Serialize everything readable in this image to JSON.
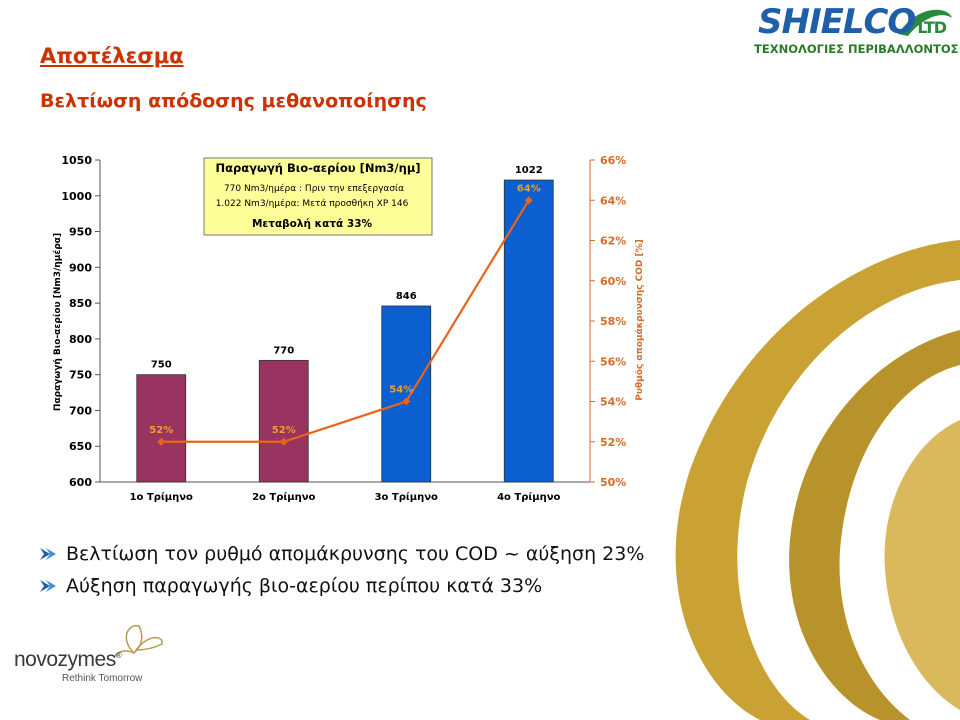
{
  "slide": {
    "title": "Αποτέλεσμα",
    "subtitle": "Βελτίωση απόδοσης μεθανοποίησης"
  },
  "logo_shielco": {
    "brand": "SHIELCO",
    "suffix": "LTD",
    "tagline": "ΤΕΧΝΟΛΟΓΙΕΣ ΠΕΡΙΒΑΛΛΟΝΤΟΣ"
  },
  "logo_novozymes": {
    "brand": "novozymes",
    "registered": "®",
    "tagline": "Rethink Tomorrow"
  },
  "bullets": [
    "Βελτίωση τον ρυθμό απομάκρυνσης του COD ~ αύξηση 23%",
    "Αύξηση παραγωγής βιο-αερίου περίπου κατά 33%"
  ],
  "colors": {
    "heading": "#cc3300",
    "bar_before": "#99335f",
    "bar_after": "#0b5fcf",
    "line": "#e8641a",
    "line_label": "#e8a030",
    "callout_bg": "#ffff99",
    "right_axis": "#d66a2a",
    "deco_gold": "#b8922a"
  },
  "chart_data": {
    "type": "bar",
    "categories": [
      "1ο Τρίμηνο",
      "2ο Τρίμηνο",
      "3ο Τρίμηνο",
      "4ο Τρίμηνο"
    ],
    "series": [
      {
        "type": "bar",
        "axis": "left",
        "values": [
          750,
          770,
          846,
          1022
        ],
        "data_labels": [
          "750",
          "770",
          "846",
          "1022"
        ]
      },
      {
        "type": "line",
        "axis": "right",
        "values": [
          52,
          52,
          54,
          64
        ],
        "data_labels": [
          "52%",
          "52%",
          "54%",
          "64%"
        ]
      }
    ],
    "ylabel": "Παραγωγή Βιο-αερίου [Nm3/ημέρα]",
    "y2label": "Ρυθμός απομάκρυνσης COD [%]",
    "ylim": [
      600,
      1050
    ],
    "yticks": [
      "600",
      "650",
      "700",
      "750",
      "800",
      "850",
      "900",
      "950",
      "1000",
      "1050"
    ],
    "y2lim": [
      50,
      66
    ],
    "y2ticks": [
      "50%",
      "52%",
      "54%",
      "56%",
      "58%",
      "60%",
      "62%",
      "64%",
      "66%"
    ],
    "legend": "none",
    "grid": false,
    "annotation": {
      "title": "Παραγωγή Βιο-αερίου [Nm3/ημ]",
      "lines": [
        "770 Nm3/ημέρα : Πριν την επεξεργασία",
        "1.022 Nm3/ημέρα: Μετά προσθήκη XP 146"
      ],
      "footer": "Μεταβολή κατά 33%"
    }
  }
}
